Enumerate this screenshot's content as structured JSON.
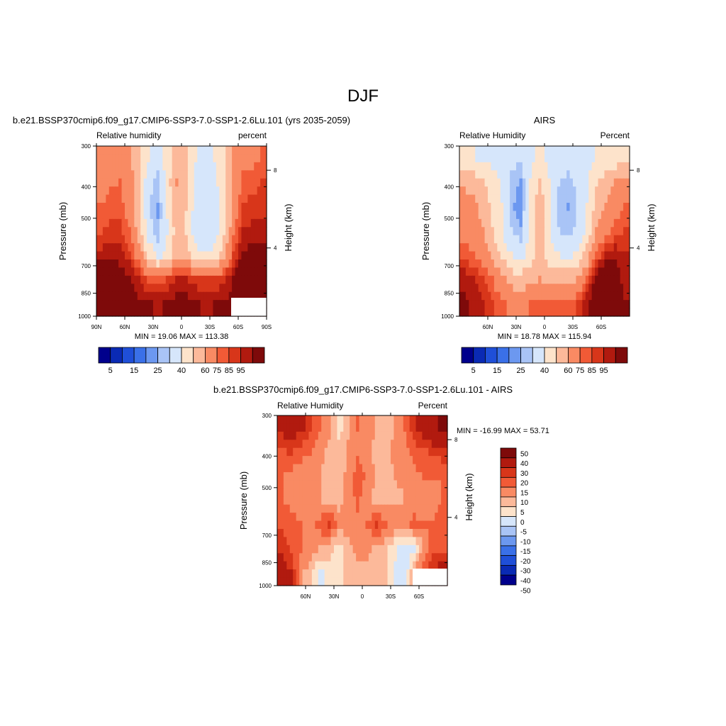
{
  "figure": {
    "title": "DJF"
  },
  "colors": {
    "abs_levels": [
      "#00008c",
      "#0a2ab4",
      "#1f4fd8",
      "#3a70e8",
      "#6c98f0",
      "#a9c4f6",
      "#d6e6fb",
      "#fde3cb",
      "#fcb99a",
      "#f98a63",
      "#f15a36",
      "#d8361a",
      "#b11a0f",
      "#7e0a0a"
    ],
    "diff_levels": [
      "#00008c",
      "#0a2ab4",
      "#1f4fd8",
      "#3a70e8",
      "#6c98f0",
      "#a9c4f6",
      "#d6e6fb",
      "#fde3cb",
      "#fcb99a",
      "#f98a63",
      "#f15a36",
      "#d8361a",
      "#b11a0f",
      "#7e0a0a"
    ]
  },
  "chart_data": [
    {
      "type": "heatmap",
      "panel": "model",
      "title": "b.e21.BSSP370cmip6.f09_g17.CMIP6-SSP3-7.0-SSP1-2.6Lu.101 (yrs 2035-2059)",
      "left_label": "Relative humidity",
      "right_label": "percent",
      "xlabel": "",
      "ylabel": "Pressure (mb)",
      "y2label": "Height (km)",
      "x_ticks": [
        "90N",
        "60N",
        "30N",
        "0",
        "30S",
        "60S",
        "90S"
      ],
      "y_ticks": [
        "300",
        "400",
        "500",
        "700",
        "850",
        "1000"
      ],
      "y2_ticks": [
        "8",
        "4"
      ],
      "stats": "MIN =  19.06  MAX = 113.38",
      "colorbar_labels": [
        "5",
        "15",
        "25",
        "40",
        "60",
        "75",
        "85",
        "95"
      ],
      "lat_range": [
        90,
        -90
      ],
      "p_range": [
        300,
        1000
      ],
      "z": [
        [
          60,
          63,
          66,
          62,
          53,
          40,
          34,
          45,
          58,
          52,
          40,
          38,
          40,
          49,
          60,
          66,
          68,
          70
        ],
        [
          66,
          69,
          70,
          65,
          53,
          33,
          27,
          45,
          60,
          52,
          38,
          35,
          37,
          47,
          63,
          72,
          73,
          75
        ],
        [
          70,
          73,
          73,
          66,
          53,
          31,
          24,
          42,
          58,
          50,
          35,
          32,
          35,
          45,
          64,
          75,
          77,
          78
        ],
        [
          74,
          77,
          76,
          70,
          56,
          34,
          26,
          38,
          56,
          48,
          34,
          31,
          34,
          46,
          68,
          80,
          82,
          82
        ],
        [
          82,
          84,
          82,
          77,
          66,
          48,
          37,
          45,
          58,
          55,
          45,
          40,
          44,
          58,
          76,
          86,
          88,
          88
        ],
        [
          92,
          94,
          90,
          86,
          80,
          74,
          72,
          76,
          80,
          80,
          78,
          75,
          76,
          78,
          86,
          92,
          94,
          90
        ],
        [
          100,
          102,
          96,
          92,
          87,
          86,
          84,
          86,
          88,
          88,
          86,
          84,
          85,
          86,
          88,
          94,
          100,
          98
        ]
      ]
    },
    {
      "type": "heatmap",
      "panel": "obs",
      "title": "AIRS",
      "left_label": "Relative Humidity",
      "right_label": "Percent",
      "xlabel": "",
      "ylabel": "Pressure (mb)",
      "y2label": "Height (km)",
      "x_ticks": [
        "60N",
        "30N",
        "0",
        "30S",
        "60S"
      ],
      "y_ticks": [
        "300",
        "400",
        "500",
        "700",
        "850",
        "1000"
      ],
      "y2_ticks": [
        "8",
        "4"
      ],
      "stats": "MIN =  18.78  MAX = 115.94",
      "colorbar_labels": [
        "5",
        "15",
        "25",
        "40",
        "60",
        "75",
        "85",
        "95"
      ],
      "lat_range": [
        82,
        -82
      ],
      "p_range": [
        300,
        1000
      ],
      "z": [
        [
          42,
          40,
          38,
          37,
          35,
          33,
          32,
          36,
          42,
          38,
          34,
          33,
          34,
          36,
          40,
          42,
          44,
          45
        ],
        [
          58,
          56,
          50,
          45,
          38,
          28,
          24,
          40,
          52,
          40,
          30,
          28,
          31,
          38,
          48,
          55,
          60,
          64
        ],
        [
          64,
          62,
          56,
          48,
          40,
          26,
          22,
          44,
          58,
          42,
          27,
          24,
          30,
          40,
          54,
          60,
          66,
          70
        ],
        [
          68,
          66,
          60,
          50,
          40,
          30,
          26,
          44,
          56,
          42,
          30,
          28,
          32,
          44,
          60,
          68,
          72,
          76
        ],
        [
          72,
          70,
          66,
          58,
          48,
          40,
          36,
          46,
          54,
          46,
          40,
          38,
          42,
          54,
          72,
          80,
          84,
          80
        ],
        [
          84,
          80,
          76,
          70,
          62,
          56,
          54,
          58,
          60,
          58,
          56,
          56,
          60,
          72,
          88,
          98,
          90,
          82
        ],
        [
          86,
          84,
          80,
          76,
          72,
          68,
          66,
          70,
          72,
          72,
          70,
          70,
          76,
          84,
          96,
          104,
          92,
          86
        ]
      ]
    },
    {
      "type": "heatmap",
      "panel": "difference",
      "title": "b.e21.BSSP370cmip6.f09_g17.CMIP6-SSP3-7.0-SSP1-2.6Lu.101 - AIRS",
      "left_label": "Relative Humidity",
      "right_label": "Percent",
      "xlabel": "",
      "ylabel": "Pressure (mb)",
      "y2label": "Height (km)",
      "x_ticks": [
        "60N",
        "30N",
        "0",
        "30S",
        "60S"
      ],
      "y_ticks": [
        "300",
        "400",
        "500",
        "700",
        "850",
        "1000"
      ],
      "y2_ticks": [
        "8",
        "4"
      ],
      "stats": "MIN = -16.99  MAX =  53.71",
      "colorbar_labels": [
        "50",
        "40",
        "30",
        "20",
        "15",
        "10",
        "5",
        "0",
        "-5",
        "-10",
        "-15",
        "-20",
        "-30",
        "-40",
        "-50"
      ],
      "lat_range": [
        82,
        -82
      ],
      "p_range": [
        300,
        1000
      ],
      "z": [
        [
          22,
          24,
          22,
          16,
          10,
          6,
          -2,
          4,
          10,
          8,
          4,
          2,
          6,
          10,
          18,
          24,
          28,
          32
        ],
        [
          14,
          16,
          12,
          10,
          6,
          4,
          2,
          6,
          8,
          6,
          4,
          4,
          6,
          8,
          12,
          14,
          16,
          18
        ],
        [
          10,
          8,
          6,
          6,
          5,
          4,
          3,
          6,
          14,
          8,
          4,
          4,
          5,
          6,
          8,
          10,
          10,
          10
        ],
        [
          10,
          8,
          6,
          5,
          5,
          4,
          3,
          6,
          12,
          6,
          4,
          4,
          4,
          5,
          6,
          8,
          8,
          10
        ],
        [
          14,
          12,
          10,
          8,
          12,
          16,
          8,
          6,
          8,
          10,
          16,
          10,
          8,
          8,
          12,
          10,
          10,
          14
        ],
        [
          18,
          14,
          10,
          8,
          4,
          2,
          -2,
          4,
          6,
          6,
          4,
          2,
          -4,
          -8,
          -6,
          6,
          12,
          14
        ],
        [
          26,
          20,
          6,
          2,
          -6,
          -4,
          -2,
          2,
          4,
          4,
          2,
          2,
          -6,
          -10,
          6,
          14,
          22,
          26
        ]
      ]
    }
  ]
}
